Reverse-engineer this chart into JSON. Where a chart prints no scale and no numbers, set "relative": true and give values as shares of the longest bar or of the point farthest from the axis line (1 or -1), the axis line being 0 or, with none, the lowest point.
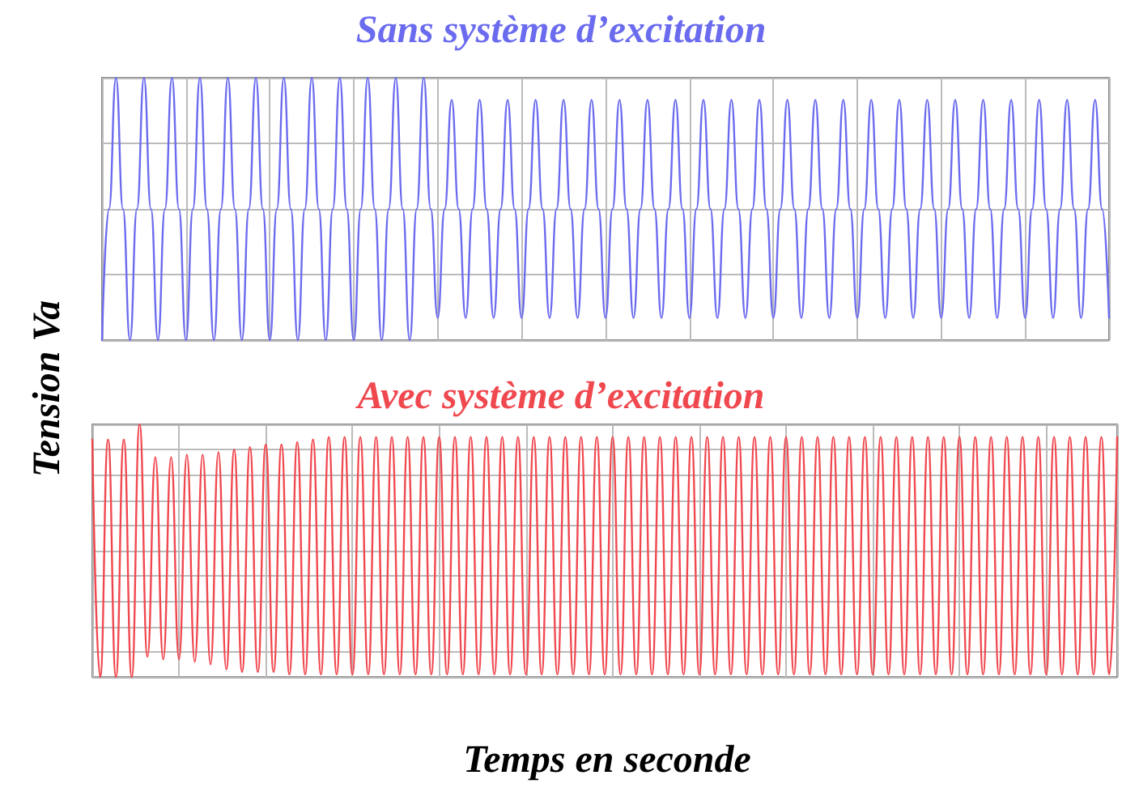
{
  "chart_data": [
    {
      "type": "line",
      "title": "Sans système d’excitation",
      "ylabel": "Tension Va",
      "relative": true,
      "grid": true,
      "categories": [
        null,
        null,
        null,
        null,
        null,
        null,
        null,
        null,
        null,
        null,
        null,
        null,
        null,
        null,
        null,
        null,
        null,
        null,
        null,
        null,
        null,
        null,
        null,
        null,
        null,
        null,
        null,
        null,
        null,
        null,
        null,
        null,
        null,
        null,
        null,
        null,
        null,
        null,
        null,
        null,
        null,
        null,
        null,
        null,
        null,
        null,
        null,
        null,
        null,
        null,
        null,
        null,
        null,
        null,
        null,
        null,
        null,
        null,
        null,
        null,
        null,
        null,
        null,
        null,
        null,
        null,
        null,
        null,
        null,
        null,
        null,
        null,
        null,
        null,
        null,
        null,
        null,
        null,
        null,
        null,
        null,
        null,
        null,
        null,
        null,
        null,
        null,
        null,
        null,
        null,
        null,
        null,
        null,
        null,
        null,
        null,
        null,
        null,
        null,
        null,
        null,
        null,
        null,
        null,
        null,
        null,
        null,
        null,
        null,
        null,
        null,
        null,
        null,
        null,
        null,
        null,
        null,
        null,
        null,
        null,
        null,
        null,
        null,
        null,
        null,
        null,
        null,
        null,
        null,
        null,
        null,
        null,
        null,
        null,
        null,
        null,
        null,
        null,
        null,
        null,
        null,
        null,
        null,
        null,
        null
      ],
      "series": [
        {
          "color": "#6b6bef",
          "values": [
            0,
            0.5,
            1,
            0.5,
            0,
            0.5,
            1,
            0.5,
            0,
            0.5,
            1,
            0.5,
            0,
            0.5,
            1,
            0.5,
            0,
            0.5,
            1,
            0.5,
            0,
            0.5,
            1,
            0.5,
            0,
            0.5,
            1,
            0.5,
            0,
            0.5,
            1,
            0.5,
            0,
            0.5,
            1,
            0.5,
            0,
            0.5,
            1,
            0.5,
            0,
            0.5,
            1,
            0.5,
            0,
            0.5,
            1,
            0.5,
            0.085,
            0.5,
            0.915,
            0.5,
            0.085,
            0.5,
            0.915,
            0.5,
            0.085,
            0.5,
            0.915,
            0.5,
            0.085,
            0.5,
            0.915,
            0.5,
            0.085,
            0.5,
            0.915,
            0.5,
            0.085,
            0.5,
            0.915,
            0.5,
            0.085,
            0.5,
            0.915,
            0.5,
            0.085,
            0.5,
            0.915,
            0.5,
            0.085,
            0.5,
            0.915,
            0.5,
            0.085,
            0.5,
            0.915,
            0.5,
            0.085,
            0.5,
            0.915,
            0.5,
            0.085,
            0.5,
            0.915,
            0.5,
            0.085,
            0.5,
            0.915,
            0.5,
            0.085,
            0.5,
            0.915,
            0.5,
            0.085,
            0.5,
            0.915,
            0.5,
            0.085,
            0.5,
            0.915,
            0.5,
            0.085,
            0.5,
            0.915,
            0.5,
            0.085,
            0.5,
            0.915,
            0.5,
            0.085,
            0.5,
            0.915,
            0.5,
            0.085,
            0.5,
            0.915,
            0.5,
            0.085,
            0.5,
            0.915,
            0.5,
            0.085,
            0.5,
            0.915,
            0.5,
            0.085,
            0.5,
            0.915,
            0.5,
            0.085,
            0.5,
            0.915,
            0.5,
            0.085
          ]
        }
      ]
    },
    {
      "type": "line",
      "title": "Avec système d’excitation",
      "xlabel": "Temps en seconde",
      "relative": true,
      "grid": true,
      "categories": [
        null,
        null,
        null,
        null,
        null,
        null,
        null,
        null,
        null,
        null,
        null,
        null,
        null,
        null,
        null,
        null,
        null,
        null,
        null,
        null,
        null,
        null,
        null,
        null,
        null,
        null,
        null,
        null,
        null,
        null,
        null,
        null,
        null,
        null,
        null,
        null,
        null,
        null,
        null,
        null,
        null,
        null,
        null,
        null,
        null,
        null,
        null,
        null,
        null,
        null,
        null,
        null,
        null,
        null,
        null,
        null,
        null,
        null,
        null,
        null,
        null,
        null,
        null,
        null,
        null,
        null,
        null,
        null,
        null,
        null,
        null,
        null,
        null,
        null,
        null,
        null,
        null,
        null,
        null,
        null,
        null,
        null,
        null,
        null,
        null,
        null,
        null,
        null,
        null,
        null,
        null,
        null,
        null,
        null,
        null,
        null,
        null,
        null,
        null,
        null,
        null,
        null,
        null,
        null,
        null,
        null,
        null,
        null,
        null,
        null,
        null,
        null,
        null,
        null,
        null,
        null,
        null,
        null,
        null,
        null,
        null,
        null,
        null,
        null,
        null,
        null,
        null,
        null,
        null,
        null,
        null
      ],
      "series": [
        {
          "color": "#f0484f",
          "values": [
            0.94,
            0,
            0.94,
            0,
            0.94,
            0,
            1,
            0.08,
            0.87,
            0.07,
            0.87,
            0.07,
            0.88,
            0.06,
            0.88,
            0.05,
            0.89,
            0.03,
            0.9,
            0.02,
            0.91,
            0.02,
            0.92,
            0.02,
            0.92,
            0.01,
            0.93,
            0.01,
            0.94,
            0.01,
            0.95,
            0.01,
            0.95,
            0.01,
            0.95,
            0.01,
            0.95,
            0.01,
            0.95,
            0.01,
            0.95,
            0.01,
            0.95,
            0.01,
            0.95,
            0.01,
            0.95,
            0.01,
            0.95,
            0.01,
            0.95,
            0.01,
            0.95,
            0.01,
            0.95,
            0.01,
            0.95,
            0.01,
            0.95,
            0.01,
            0.95,
            0.01,
            0.95,
            0.01,
            0.95,
            0.01,
            0.95,
            0.01,
            0.95,
            0.01,
            0.95,
            0.01,
            0.95,
            0.01,
            0.95,
            0.01,
            0.95,
            0.01,
            0.95,
            0.01,
            0.95,
            0.01,
            0.95,
            0.01,
            0.95,
            0.01,
            0.95,
            0.01,
            0.95,
            0.01,
            0.95,
            0.01,
            0.95,
            0.01,
            0.95,
            0.01,
            0.95,
            0.01,
            0.95,
            0.01,
            0.95,
            0.01,
            0.95,
            0.01,
            0.95,
            0.01,
            0.95,
            0.01,
            0.95,
            0.01,
            0.95,
            0.01,
            0.95,
            0.01,
            0.95,
            0.01,
            0.95,
            0.01,
            0.95,
            0.01,
            0.95,
            0.01,
            0.95,
            0.01,
            0.95,
            0.01,
            0.95,
            0.01,
            0.95,
            0.01,
            0.95
          ]
        }
      ]
    }
  ]
}
